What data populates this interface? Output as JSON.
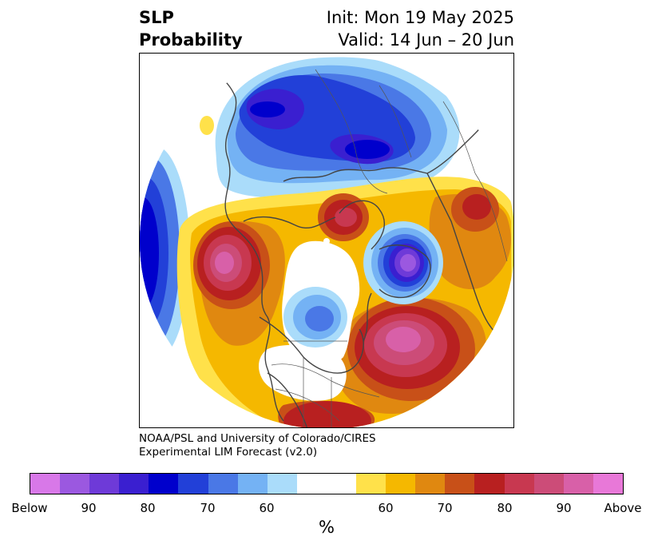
{
  "title": {
    "left_line1": "SLP",
    "left_line2": "Probability",
    "init": "Init: Mon 19 May 2025",
    "valid": "Valid: 14 Jun – 20 Jun"
  },
  "credit": {
    "line1": "NOAA/PSL and University of Colorado/CIRES",
    "line2": "Experimental LIM Forecast (v2.0)"
  },
  "colorbar": {
    "colors": [
      "#d878e8",
      "#9b58e0",
      "#6e3ad8",
      "#3a1fd0",
      "#0000cc",
      "#2240d8",
      "#4a78e6",
      "#74b2f4",
      "#aadcfa",
      "#ffffff",
      "#ffffff",
      "#ffe14a",
      "#f5b800",
      "#e08810",
      "#c85018",
      "#b82020",
      "#c83850",
      "#cc4c78",
      "#d860a8",
      "#e878d8"
    ],
    "tick_labels": [
      "Below",
      "90",
      "80",
      "70",
      "60",
      "60",
      "70",
      "80",
      "90",
      "Above"
    ],
    "unit_label": "%"
  }
}
